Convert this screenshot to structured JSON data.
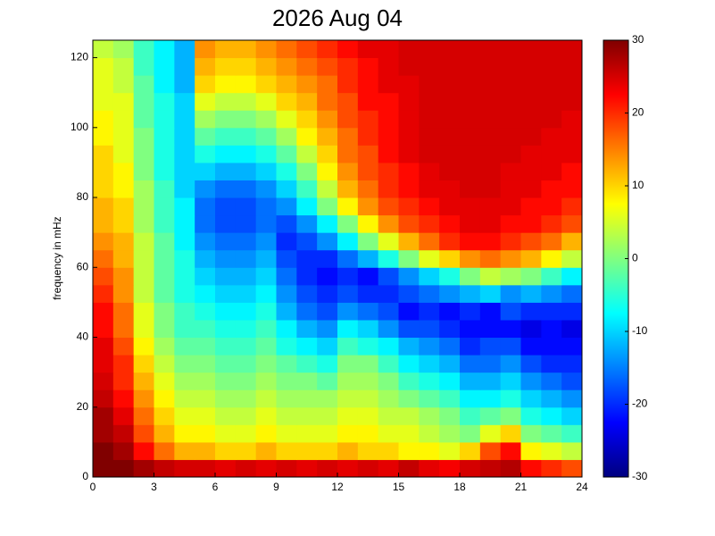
{
  "chart_data": {
    "type": "heatmap",
    "title": "2026 Aug 04",
    "y_label": "frequency in mHz",
    "xbins": [
      0,
      1,
      2,
      3,
      4,
      5,
      6,
      7,
      8,
      9,
      10,
      11,
      12,
      13,
      14,
      15,
      16,
      17,
      18,
      19,
      20,
      21,
      22,
      23,
      24
    ],
    "ybins": [
      0,
      5,
      10,
      15,
      20,
      25,
      30,
      35,
      40,
      45,
      50,
      55,
      60,
      65,
      70,
      75,
      80,
      85,
      90,
      95,
      100,
      105,
      110,
      115,
      120,
      125
    ],
    "xlim": [
      0,
      24
    ],
    "xticks": [
      0,
      3,
      6,
      9,
      12,
      15,
      18,
      21,
      24
    ],
    "ylim": [
      0,
      125
    ],
    "yticks": [
      0,
      20,
      40,
      60,
      80,
      100,
      120
    ],
    "colormap": "jet",
    "clim": [
      -30,
      30
    ],
    "cticks": [
      -30,
      -20,
      -10,
      0,
      10,
      20,
      30
    ],
    "z": [
      [
        30,
        30,
        28,
        26,
        25,
        25,
        24,
        25,
        24,
        25,
        24,
        25,
        24,
        25,
        24,
        26,
        24,
        23,
        25,
        26,
        27,
        22,
        20,
        18
      ],
      [
        30,
        28,
        22,
        16,
        12,
        12,
        10,
        10,
        12,
        10,
        10,
        10,
        12,
        10,
        10,
        8,
        8,
        6,
        10,
        18,
        22,
        8,
        6,
        4
      ],
      [
        28,
        26,
        18,
        12,
        8,
        8,
        6,
        6,
        8,
        6,
        6,
        6,
        8,
        8,
        6,
        6,
        4,
        2,
        0,
        6,
        10,
        0,
        -2,
        -4
      ],
      [
        28,
        24,
        16,
        10,
        6,
        6,
        4,
        4,
        6,
        4,
        4,
        4,
        6,
        6,
        4,
        4,
        2,
        0,
        -4,
        -2,
        0,
        -6,
        -8,
        -10
      ],
      [
        26,
        22,
        14,
        8,
        4,
        4,
        2,
        2,
        4,
        2,
        2,
        2,
        4,
        4,
        2,
        0,
        -2,
        -4,
        -8,
        -8,
        -6,
        -10,
        -12,
        -14
      ],
      [
        25,
        20,
        12,
        6,
        2,
        2,
        0,
        0,
        2,
        0,
        0,
        -2,
        2,
        2,
        0,
        -4,
        -6,
        -8,
        -12,
        -12,
        -10,
        -14,
        -16,
        -18
      ],
      [
        24,
        20,
        10,
        4,
        0,
        0,
        -2,
        -2,
        0,
        -2,
        -4,
        -6,
        0,
        0,
        -4,
        -8,
        -10,
        -12,
        -16,
        -16,
        -14,
        -18,
        -20,
        -20
      ],
      [
        24,
        18,
        8,
        2,
        -2,
        -2,
        -4,
        -4,
        -2,
        -6,
        -8,
        -10,
        -4,
        -6,
        -8,
        -12,
        -14,
        -16,
        -20,
        -18,
        -18,
        -22,
        -22,
        -22
      ],
      [
        22,
        16,
        6,
        0,
        -4,
        -4,
        -6,
        -6,
        -4,
        -8,
        -12,
        -14,
        -8,
        -10,
        -14,
        -18,
        -18,
        -20,
        -22,
        -22,
        -22,
        -24,
        -22,
        -24
      ],
      [
        22,
        16,
        6,
        0,
        -4,
        -6,
        -8,
        -8,
        -6,
        -12,
        -16,
        -18,
        -14,
        -16,
        -18,
        -22,
        -20,
        -22,
        -20,
        -22,
        -18,
        -20,
        -20,
        -20
      ],
      [
        20,
        14,
        4,
        -2,
        -6,
        -8,
        -10,
        -10,
        -8,
        -14,
        -18,
        -20,
        -18,
        -20,
        -20,
        -18,
        -16,
        -14,
        -12,
        -10,
        -14,
        -12,
        -14,
        -16
      ],
      [
        18,
        14,
        4,
        -2,
        -6,
        -10,
        -12,
        -12,
        -10,
        -16,
        -20,
        -22,
        -20,
        -22,
        -18,
        -14,
        -10,
        -6,
        0,
        4,
        2,
        0,
        -4,
        -8
      ],
      [
        16,
        12,
        4,
        -2,
        -6,
        -12,
        -14,
        -14,
        -12,
        -18,
        -20,
        -20,
        -16,
        -12,
        -6,
        0,
        6,
        10,
        14,
        16,
        14,
        12,
        8,
        4
      ],
      [
        14,
        12,
        4,
        -2,
        -8,
        -14,
        -16,
        -16,
        -14,
        -20,
        -18,
        -14,
        -8,
        0,
        6,
        12,
        16,
        20,
        22,
        22,
        20,
        18,
        16,
        12
      ],
      [
        12,
        10,
        2,
        -4,
        -8,
        -16,
        -18,
        -18,
        -16,
        -18,
        -14,
        -8,
        0,
        8,
        14,
        18,
        20,
        22,
        24,
        24,
        22,
        22,
        20,
        18
      ],
      [
        12,
        10,
        2,
        -4,
        -8,
        -16,
        -18,
        -18,
        -16,
        -14,
        -8,
        0,
        8,
        14,
        18,
        20,
        22,
        24,
        24,
        24,
        24,
        22,
        22,
        20
      ],
      [
        10,
        8,
        2,
        -4,
        -10,
        -14,
        -16,
        -16,
        -14,
        -10,
        -4,
        4,
        12,
        16,
        20,
        22,
        24,
        24,
        25,
        25,
        24,
        24,
        22,
        22
      ],
      [
        10,
        8,
        0,
        -6,
        -10,
        -10,
        -12,
        -12,
        -10,
        -6,
        0,
        8,
        14,
        18,
        20,
        22,
        24,
        25,
        25,
        25,
        24,
        24,
        24,
        22
      ],
      [
        10,
        6,
        0,
        -6,
        -10,
        -6,
        -8,
        -8,
        -6,
        -2,
        4,
        10,
        16,
        18,
        22,
        24,
        25,
        25,
        25,
        25,
        25,
        24,
        24,
        24
      ],
      [
        8,
        6,
        0,
        -6,
        -10,
        -2,
        -4,
        -4,
        -2,
        2,
        8,
        12,
        16,
        20,
        22,
        24,
        25,
        25,
        25,
        25,
        25,
        25,
        24,
        24
      ],
      [
        8,
        6,
        -2,
        -6,
        -10,
        2,
        0,
        0,
        2,
        6,
        10,
        14,
        18,
        20,
        22,
        24,
        25,
        25,
        25,
        25,
        25,
        25,
        25,
        24
      ],
      [
        6,
        6,
        -2,
        -6,
        -10,
        6,
        4,
        4,
        6,
        10,
        12,
        16,
        18,
        22,
        22,
        24,
        25,
        25,
        25,
        25,
        25,
        25,
        25,
        25
      ],
      [
        6,
        4,
        -2,
        -8,
        -12,
        10,
        8,
        8,
        10,
        12,
        14,
        16,
        20,
        22,
        24,
        24,
        25,
        25,
        25,
        25,
        25,
        25,
        25,
        25
      ],
      [
        6,
        4,
        -4,
        -8,
        -12,
        12,
        10,
        10,
        12,
        14,
        16,
        18,
        20,
        22,
        24,
        25,
        25,
        25,
        25,
        25,
        25,
        25,
        25,
        25
      ],
      [
        4,
        2,
        -4,
        -8,
        -12,
        14,
        12,
        12,
        14,
        16,
        18,
        20,
        22,
        24,
        24,
        25,
        25,
        25,
        25,
        25,
        25,
        25,
        25,
        25
      ]
    ]
  }
}
